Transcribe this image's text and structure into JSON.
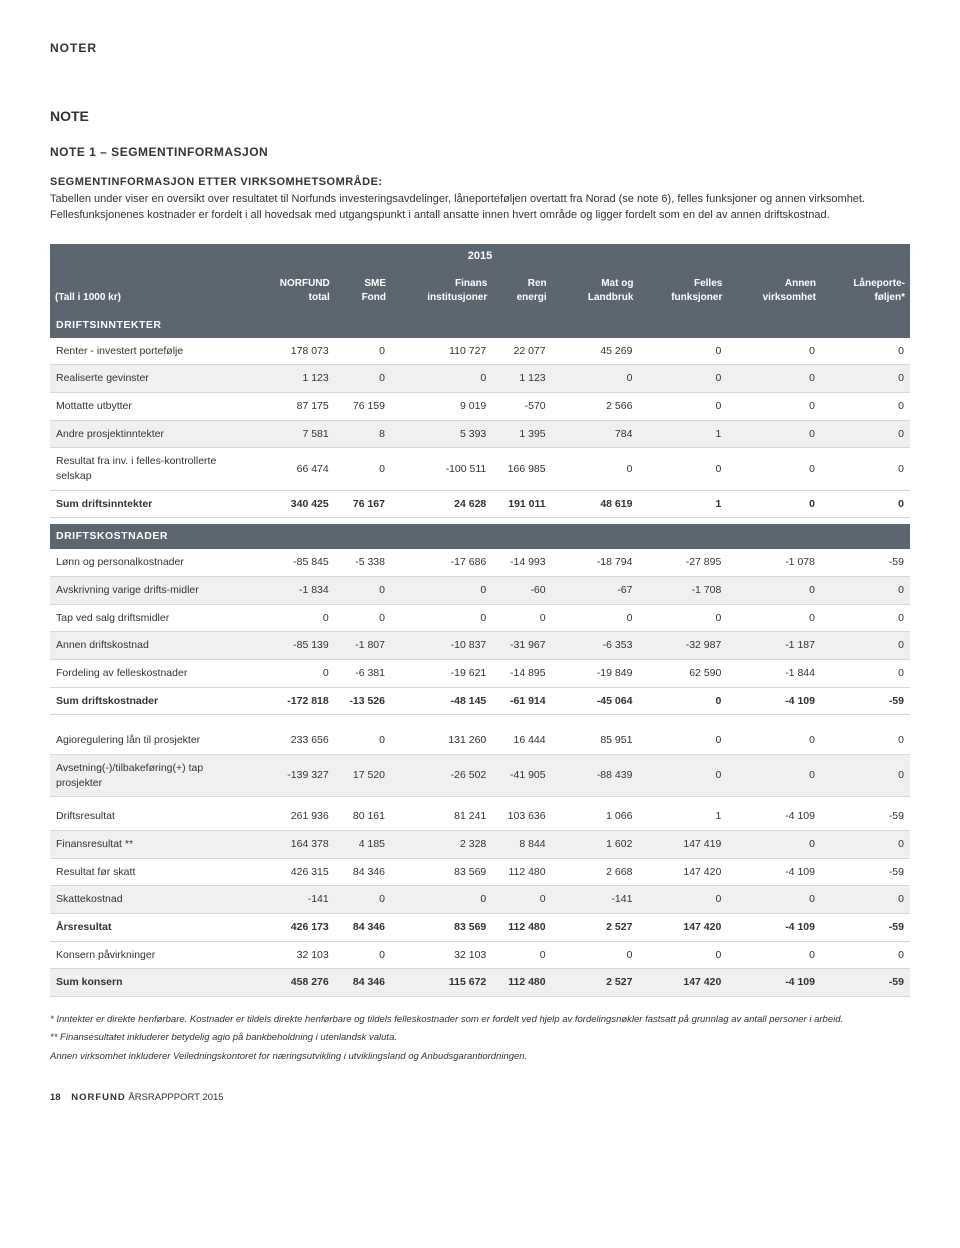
{
  "header": {
    "noter": "NOTER"
  },
  "title": "NOTE",
  "subtitle": "NOTE 1 – SEGMENTINFORMASJON",
  "subhead": "SEGMENTINFORMASJON ETTER VIRKSOMHETSOMRÅDE:",
  "intro": "Tabellen under viser en oversikt over resultatet til Norfunds investeringsavdelinger, låneporteføljen overtatt fra Norad (se note 6), felles funksjoner og annen virksomhet. Fellesfunksjonenes kostnader er fordelt i all hovedsak med utgangspunkt i antall ansatte innen hvert område og ligger fordelt som en del av annen driftskostnad.",
  "year": "2015",
  "columns": [
    "(Tall i 1000 kr)",
    "NORFUND total",
    "SME Fond",
    "Finans institusjoner",
    "Ren energi",
    "Mat og Landbruk",
    "Felles funksjoner",
    "Annen virksomhet",
    "Låneporte-føljen*"
  ],
  "sections": [
    {
      "label": "DRIFTSINNTEKTER",
      "rows": [
        {
          "l": "Renter - investert portefølje",
          "c": [
            "178 073",
            "0",
            "110 727",
            "22 077",
            "45 269",
            "0",
            "0",
            "0"
          ]
        },
        {
          "l": "Realiserte gevinster",
          "c": [
            "1 123",
            "0",
            "0",
            "1 123",
            "0",
            "0",
            "0",
            "0"
          ],
          "alt": true
        },
        {
          "l": "Mottatte utbytter",
          "c": [
            "87 175",
            "76 159",
            "9 019",
            "-570",
            "2 566",
            "0",
            "0",
            "0"
          ]
        },
        {
          "l": "Andre prosjektinntekter",
          "c": [
            "7 581",
            "8",
            "5 393",
            "1 395",
            "784",
            "1",
            "0",
            "0"
          ],
          "alt": true
        },
        {
          "l": "Resultat fra inv. i felles-kontrollerte selskap",
          "c": [
            "66 474",
            "0",
            "-100 511",
            "166 985",
            "0",
            "0",
            "0",
            "0"
          ]
        },
        {
          "l": "Sum driftsinntekter",
          "c": [
            "340 425",
            "76 167",
            "24 628",
            "191 011",
            "48 619",
            "1",
            "0",
            "0"
          ],
          "bold": true
        }
      ]
    },
    {
      "label": "DRIFTSKOSTNADER",
      "rows": [
        {
          "l": "Lønn og personalkostnader",
          "c": [
            "-85 845",
            "-5 338",
            "-17 686",
            "-14 993",
            "-18 794",
            "-27 895",
            "-1 078",
            "-59"
          ]
        },
        {
          "l": "Avskrivning varige drifts-midler",
          "c": [
            "-1 834",
            "0",
            "0",
            "-60",
            "-67",
            "-1 708",
            "0",
            "0"
          ],
          "alt": true
        },
        {
          "l": "Tap ved salg driftsmidler",
          "c": [
            "0",
            "0",
            "0",
            "0",
            "0",
            "0",
            "0",
            "0"
          ]
        },
        {
          "l": "Annen driftskostnad",
          "c": [
            "-85 139",
            "-1 807",
            "-10 837",
            "-31 967",
            "-6 353",
            "-32 987",
            "-1 187",
            "0"
          ],
          "alt": true
        },
        {
          "l": "Fordeling av felleskostnader",
          "c": [
            "0",
            "-6 381",
            "-19 621",
            "-14 895",
            "-19 849",
            "62 590",
            "-1 844",
            "0"
          ]
        },
        {
          "l": "Sum driftskostnader",
          "c": [
            "-172 818",
            "-13 526",
            "-48 145",
            "-61 914",
            "-45 064",
            "0",
            "-4 109",
            "-59"
          ],
          "bold": true
        }
      ]
    },
    {
      "label": "",
      "rows": [
        {
          "l": "Agioregulering lån til prosjekter",
          "c": [
            "233 656",
            "0",
            "131 260",
            "16 444",
            "85 951",
            "0",
            "0",
            "0"
          ]
        },
        {
          "l": "Avsetning(-)/tilbakeføring(+) tap prosjekter",
          "c": [
            "-139 327",
            "17 520",
            "-26 502",
            "-41 905",
            "-88 439",
            "0",
            "0",
            "0"
          ],
          "alt": true
        }
      ]
    },
    {
      "label": "",
      "rows": [
        {
          "l": "Driftsresultat",
          "c": [
            "261 936",
            "80 161",
            "81 241",
            "103 636",
            "1 066",
            "1",
            "-4 109",
            "-59"
          ]
        },
        {
          "l": "Finansresultat **",
          "c": [
            "164 378",
            "4 185",
            "2 328",
            "8 844",
            "1 602",
            "147 419",
            "0",
            "0"
          ],
          "alt": true
        },
        {
          "l": "Resultat  før skatt",
          "c": [
            "426 315",
            "84 346",
            "83 569",
            "112 480",
            "2 668",
            "147 420",
            "-4 109",
            "-59"
          ]
        },
        {
          "l": "Skattekostnad",
          "c": [
            "-141",
            "0",
            "0",
            "0",
            "-141",
            "0",
            "0",
            "0"
          ],
          "alt": true
        },
        {
          "l": "Årsresultat",
          "c": [
            "426 173",
            "84 346",
            "83 569",
            "112 480",
            "2 527",
            "147 420",
            "-4 109",
            "-59"
          ],
          "bold": true
        },
        {
          "l": "Konsern påvirkninger",
          "c": [
            "32 103",
            "0",
            "32 103",
            "0",
            "0",
            "0",
            "0",
            "0"
          ]
        },
        {
          "l": "Sum konsern",
          "c": [
            "458 276",
            "84 346",
            "115 672",
            "112 480",
            "2 527",
            "147 420",
            "-4 109",
            "-59"
          ],
          "bold": true,
          "alt": true
        }
      ]
    }
  ],
  "footnotes": [
    "*  Inntekter er direkte henførbare. Kostnader er tildels direkte henførbare og tildels felleskostnader som er fordelt ved hjelp av fordelingsnøkler fastsatt på grunnlag av antall personer i arbeid.",
    "** Finansesultatet inkluderer betydelig agio på bankbeholdning i utenlandsk valuta.",
    "Annen virksomhet inkluderer Veiledningskontoret for næringsutvikling i utviklingsland og Anbudsgarantiordningen."
  ],
  "footer": {
    "page": "18",
    "brand": "NORFUND",
    "doc": "ÅRSRAPPPORT 2015"
  }
}
